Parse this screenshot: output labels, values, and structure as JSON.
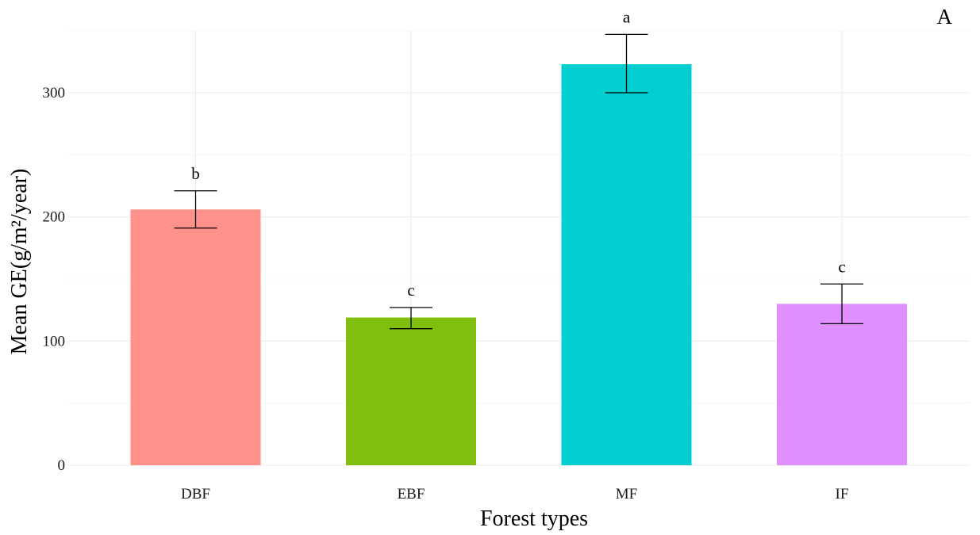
{
  "chart_data": {
    "type": "bar",
    "title": "",
    "panel_label": "A",
    "xlabel": "Forest types",
    "ylabel": "Mean GE(g/m²/year)",
    "ylim": [
      0,
      350
    ],
    "y_ticks": [
      0,
      100,
      200,
      300
    ],
    "grid": true,
    "legend": "none",
    "categories": [
      "DBF",
      "EBF",
      "MF",
      "IF"
    ],
    "values": [
      206,
      119,
      323,
      130
    ],
    "error_low": [
      191,
      110,
      300,
      114
    ],
    "error_high": [
      221,
      127,
      347,
      146
    ],
    "significance_labels": [
      "b",
      "c",
      "a",
      "c"
    ],
    "colors": [
      "#FF918B",
      "#80BF0D",
      "#00CED1",
      "#E08FFF"
    ]
  }
}
